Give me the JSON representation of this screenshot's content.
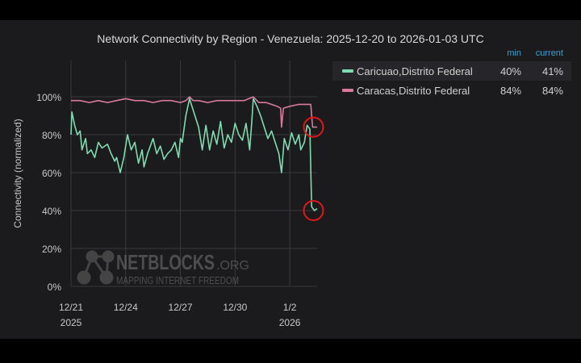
{
  "chart_data": {
    "type": "line",
    "title": "Network Connectivity by Region - Venezuela: 2025-12-20 to 2026-01-03 UTC",
    "ylabel": "Connectivity (normalized)",
    "xlabel": "",
    "ylim": [
      0,
      100
    ],
    "xlim_days_since_12_21": [
      0,
      13.5
    ],
    "grid": true,
    "legend_placement": "top-right",
    "yticks": [
      "0%",
      "20%",
      "40%",
      "60%",
      "80%",
      "100%"
    ],
    "ytick_values": [
      0,
      20,
      40,
      60,
      80,
      100
    ],
    "xticks": [
      {
        "day": 0,
        "label": "12/21",
        "sub": "2025"
      },
      {
        "day": 3,
        "label": "12/24",
        "sub": ""
      },
      {
        "day": 6,
        "label": "12/27",
        "sub": ""
      },
      {
        "day": 9,
        "label": "12/30",
        "sub": ""
      },
      {
        "day": 12,
        "label": "1/2",
        "sub": "2026"
      }
    ],
    "legend_headers": {
      "min": "min",
      "current": "current"
    },
    "series": [
      {
        "name": "Caricuao,Distrito Federal",
        "color": "#7fdcb0",
        "min": "40%",
        "current": "41%",
        "points": [
          [
            0,
            80
          ],
          [
            0.05,
            92
          ],
          [
            0.2,
            85
          ],
          [
            0.35,
            80
          ],
          [
            0.5,
            82
          ],
          [
            0.6,
            72
          ],
          [
            0.8,
            78
          ],
          [
            0.9,
            70
          ],
          [
            1.1,
            72
          ],
          [
            1.3,
            68
          ],
          [
            1.5,
            76
          ],
          [
            1.7,
            73
          ],
          [
            2.0,
            75
          ],
          [
            2.2,
            70
          ],
          [
            2.4,
            66
          ],
          [
            2.5,
            68
          ],
          [
            2.7,
            60
          ],
          [
            2.9,
            68
          ],
          [
            3.1,
            80
          ],
          [
            3.3,
            72
          ],
          [
            3.5,
            76
          ],
          [
            3.7,
            65
          ],
          [
            3.9,
            72
          ],
          [
            4.0,
            63
          ],
          [
            4.2,
            70
          ],
          [
            4.5,
            78
          ],
          [
            4.7,
            70
          ],
          [
            4.9,
            74
          ],
          [
            5.1,
            67
          ],
          [
            5.3,
            70
          ],
          [
            5.5,
            72
          ],
          [
            5.7,
            76
          ],
          [
            5.9,
            68
          ],
          [
            6.0,
            78
          ],
          [
            6.1,
            76
          ],
          [
            6.3,
            90
          ],
          [
            6.5,
            99
          ],
          [
            6.6,
            96
          ],
          [
            6.8,
            90
          ],
          [
            7.0,
            84
          ],
          [
            7.2,
            72
          ],
          [
            7.4,
            85
          ],
          [
            7.6,
            72
          ],
          [
            7.8,
            82
          ],
          [
            8.0,
            75
          ],
          [
            8.2,
            87
          ],
          [
            8.4,
            73
          ],
          [
            8.6,
            80
          ],
          [
            8.8,
            76
          ],
          [
            9.0,
            86
          ],
          [
            9.2,
            80
          ],
          [
            9.4,
            77
          ],
          [
            9.6,
            86
          ],
          [
            9.8,
            72
          ],
          [
            9.9,
            85
          ],
          [
            10.0,
            99
          ],
          [
            10.2,
            95
          ],
          [
            10.4,
            90
          ],
          [
            10.6,
            84
          ],
          [
            10.8,
            78
          ],
          [
            11.0,
            82
          ],
          [
            11.2,
            76
          ],
          [
            11.4,
            70
          ],
          [
            11.55,
            60
          ],
          [
            11.7,
            78
          ],
          [
            11.9,
            72
          ],
          [
            12.1,
            81
          ],
          [
            12.3,
            75
          ],
          [
            12.5,
            80
          ],
          [
            12.6,
            72
          ],
          [
            12.8,
            76
          ],
          [
            12.95,
            85
          ],
          [
            13.1,
            83
          ],
          [
            13.2,
            42
          ],
          [
            13.35,
            40
          ],
          [
            13.5,
            41
          ]
        ]
      },
      {
        "name": "Caracas,Distrito Federal",
        "color": "#d9799e",
        "min": "84%",
        "current": "84%",
        "points": [
          [
            0,
            98
          ],
          [
            0.5,
            98
          ],
          [
            1,
            97
          ],
          [
            1.5,
            98
          ],
          [
            2,
            97
          ],
          [
            2.5,
            98
          ],
          [
            3,
            99
          ],
          [
            3.5,
            98
          ],
          [
            4,
            98
          ],
          [
            4.5,
            97
          ],
          [
            5,
            98
          ],
          [
            5.5,
            98
          ],
          [
            6,
            97
          ],
          [
            6.3,
            98
          ],
          [
            6.5,
            100
          ],
          [
            6.7,
            98
          ],
          [
            7,
            98
          ],
          [
            7.5,
            97
          ],
          [
            8,
            98
          ],
          [
            8.5,
            98
          ],
          [
            9,
            98
          ],
          [
            9.5,
            98
          ],
          [
            10,
            100
          ],
          [
            10.3,
            97
          ],
          [
            10.7,
            97
          ],
          [
            11,
            96
          ],
          [
            11.3,
            95
          ],
          [
            11.5,
            94
          ],
          [
            11.55,
            84
          ],
          [
            11.65,
            94
          ],
          [
            12,
            95
          ],
          [
            12.5,
            96
          ],
          [
            13.0,
            96
          ],
          [
            13.15,
            96
          ],
          [
            13.25,
            84
          ],
          [
            13.5,
            84
          ]
        ]
      }
    ],
    "annotations": [
      {
        "type": "red-circle",
        "day": 13.3,
        "value": 84
      },
      {
        "type": "red-circle",
        "day": 13.3,
        "value": 40
      }
    ],
    "watermark": {
      "brand": "NETBLOCKS",
      "suffix": ".ORG",
      "tagline": "MAPPING INTERNET FREEDOM"
    }
  }
}
